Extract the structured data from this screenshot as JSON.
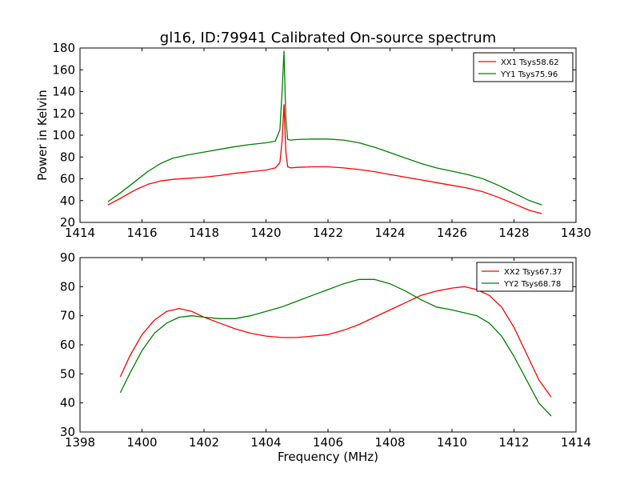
{
  "title": "gl16, ID:79941 Calibrated On-source spectrum",
  "colors": {
    "xx": "#ff0000",
    "yy": "#008000",
    "axis": "#000000",
    "background": "#ffffff"
  },
  "chart_data": [
    {
      "type": "line",
      "title": "gl16, ID:79941 Calibrated On-source spectrum",
      "xlabel": "",
      "ylabel": "Power in Kelvin",
      "xlim": [
        1414,
        1430
      ],
      "ylim": [
        20,
        180
      ],
      "xticks": [
        "1414",
        "1416",
        "1418",
        "1420",
        "1422",
        "1424",
        "1426",
        "1428",
        "1430"
      ],
      "yticks": [
        "20",
        "40",
        "60",
        "80",
        "100",
        "120",
        "140",
        "160",
        "180"
      ],
      "grid": false,
      "legend_position": "top-right",
      "series": [
        {
          "name": "XX1 Tsys58.62",
          "color": "#ff0000",
          "x": [
            1414.9,
            1415.3,
            1415.8,
            1416.2,
            1416.6,
            1417.0,
            1417.5,
            1418.0,
            1418.5,
            1419.0,
            1419.5,
            1420.0,
            1420.3,
            1420.45,
            1420.52,
            1420.58,
            1420.64,
            1420.7,
            1420.8,
            1421.0,
            1421.5,
            1422.0,
            1422.5,
            1423.0,
            1423.5,
            1424.0,
            1424.5,
            1425.0,
            1425.5,
            1426.0,
            1426.5,
            1427.0,
            1427.5,
            1428.0,
            1428.5,
            1428.9
          ],
          "y": [
            36,
            42,
            50,
            55,
            58,
            59.5,
            60.5,
            61.5,
            63,
            65,
            66.5,
            68,
            70,
            75,
            95,
            128,
            85,
            71,
            70,
            70.5,
            71,
            71,
            70,
            68.5,
            66.5,
            64,
            61.5,
            59,
            56.5,
            54,
            51.5,
            48,
            43,
            37,
            31,
            28
          ]
        },
        {
          "name": "YY1 Tsys75.96",
          "color": "#008000",
          "x": [
            1414.9,
            1415.3,
            1415.8,
            1416.2,
            1416.6,
            1417.0,
            1417.5,
            1418.0,
            1418.5,
            1419.0,
            1419.5,
            1420.0,
            1420.3,
            1420.45,
            1420.52,
            1420.58,
            1420.64,
            1420.7,
            1420.8,
            1421.0,
            1421.5,
            1422.0,
            1422.5,
            1423.0,
            1423.5,
            1424.0,
            1424.5,
            1425.0,
            1425.5,
            1426.0,
            1426.5,
            1427.0,
            1427.5,
            1428.0,
            1428.5,
            1428.9
          ],
          "y": [
            39,
            47,
            58,
            67,
            74,
            79,
            82,
            84.5,
            87,
            89.5,
            91.5,
            93,
            94.5,
            105,
            140,
            177,
            115,
            96,
            95.5,
            96,
            96.5,
            96.5,
            95.5,
            93,
            89,
            84,
            79,
            74,
            70,
            67,
            64,
            60,
            54,
            47,
            40,
            36
          ]
        }
      ]
    },
    {
      "type": "line",
      "title": "",
      "xlabel": "Frequency (MHz)",
      "ylabel": "",
      "xlim": [
        1398,
        1414
      ],
      "ylim": [
        30,
        90
      ],
      "xticks": [
        "1398",
        "1400",
        "1402",
        "1404",
        "1406",
        "1408",
        "1410",
        "1412",
        "1414"
      ],
      "yticks": [
        "30",
        "40",
        "50",
        "60",
        "70",
        "80",
        "90"
      ],
      "grid": false,
      "legend_position": "top-right",
      "series": [
        {
          "name": "XX2 Tsys67.37",
          "color": "#ff0000",
          "x": [
            1399.3,
            1399.6,
            1400.0,
            1400.4,
            1400.8,
            1401.2,
            1401.6,
            1402.0,
            1402.5,
            1403.0,
            1403.5,
            1404.0,
            1404.5,
            1405.0,
            1405.5,
            1406.0,
            1406.5,
            1407.0,
            1407.5,
            1408.0,
            1408.5,
            1409.0,
            1409.5,
            1410.0,
            1410.4,
            1410.8,
            1411.2,
            1411.6,
            1412.0,
            1412.4,
            1412.8,
            1413.2
          ],
          "y": [
            49,
            56,
            63.5,
            68.5,
            71.5,
            72.5,
            71.5,
            69.5,
            67.5,
            65.5,
            64,
            63,
            62.5,
            62.5,
            63,
            63.5,
            65,
            67,
            69.5,
            72,
            74.5,
            77,
            78.5,
            79.5,
            80,
            79,
            77,
            73,
            66,
            57,
            48,
            42
          ]
        },
        {
          "name": "YY2 Tsys68.78",
          "color": "#008000",
          "x": [
            1399.3,
            1399.6,
            1400.0,
            1400.4,
            1400.8,
            1401.2,
            1401.6,
            1402.0,
            1402.5,
            1403.0,
            1403.5,
            1404.0,
            1404.5,
            1405.0,
            1405.5,
            1406.0,
            1406.5,
            1407.0,
            1407.5,
            1408.0,
            1408.5,
            1409.0,
            1409.5,
            1410.0,
            1410.4,
            1410.8,
            1411.2,
            1411.6,
            1412.0,
            1412.4,
            1412.8,
            1413.2
          ],
          "y": [
            43.5,
            50,
            58,
            64,
            67.5,
            69.5,
            70,
            69.5,
            69,
            69,
            70,
            71.5,
            73,
            75,
            77,
            79,
            81,
            82.5,
            82.5,
            81,
            78.5,
            75.5,
            73,
            72,
            71,
            70,
            67.5,
            63,
            56,
            48,
            40,
            35.5
          ]
        }
      ]
    }
  ]
}
